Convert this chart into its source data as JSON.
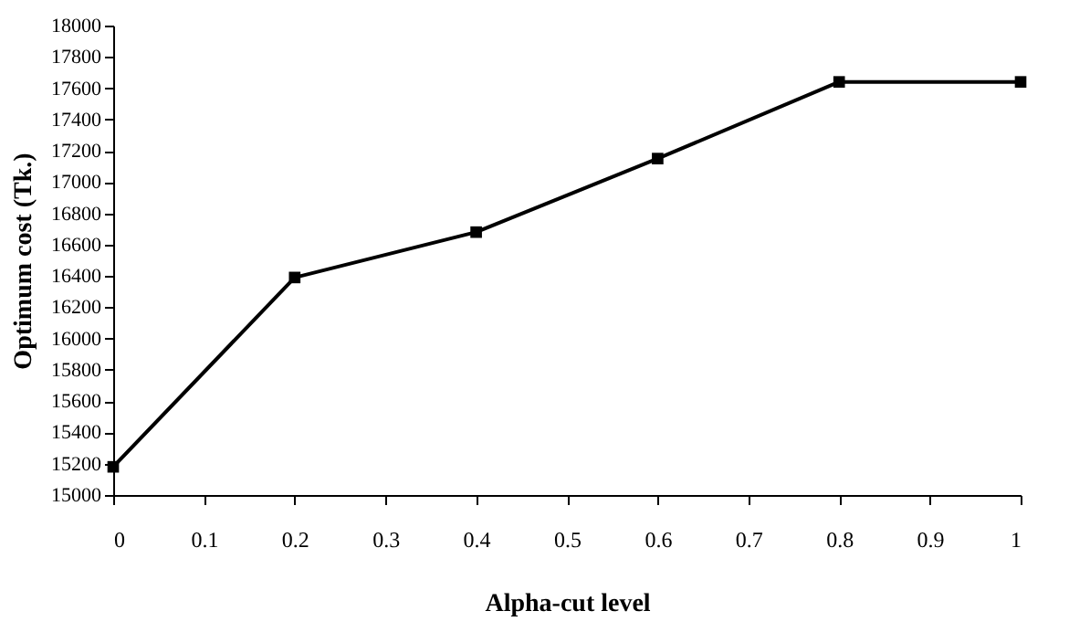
{
  "chart_data": {
    "type": "line",
    "xlabel": "Alpha-cut level",
    "ylabel": "Optimum cost (Tk.)",
    "x": [
      0,
      0.2,
      0.4,
      0.6,
      0.8,
      1
    ],
    "series": [
      {
        "color": "#000000",
        "values": [
          15180,
          16390,
          16680,
          17150,
          17640,
          17640
        ]
      }
    ],
    "xlim": [
      0,
      1
    ],
    "xticks": [
      0,
      0.1,
      0.2,
      0.3,
      0.4,
      0.5,
      0.6,
      0.7,
      0.8,
      0.9,
      1
    ],
    "ylim": [
      15000,
      18000
    ],
    "yticks": [
      15000,
      15200,
      15400,
      15600,
      15800,
      16000,
      16200,
      16400,
      16600,
      16800,
      17000,
      17200,
      17400,
      17600,
      17800,
      18000
    ],
    "grid": false,
    "marker": "square",
    "line_style": "solid"
  }
}
